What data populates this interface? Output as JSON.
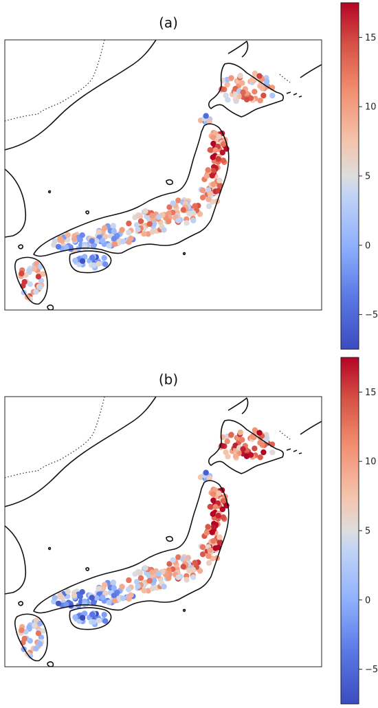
{
  "figure": {
    "panels": [
      {
        "id": "a",
        "title": "(a)"
      },
      {
        "id": "b",
        "title": "(b)"
      }
    ],
    "colorbar": {
      "colormap": "coolwarm",
      "vmin": -7.5,
      "vmax": 17.5,
      "ticks": [
        {
          "value": 15,
          "label": "15"
        },
        {
          "value": 10,
          "label": "10"
        },
        {
          "value": 5,
          "label": "5"
        },
        {
          "value": 0,
          "label": "0"
        },
        {
          "value": -5,
          "label": "−5"
        }
      ],
      "colors": {
        "low": "#3b4cc0",
        "mid": "#dddddd",
        "high": "#b40426"
      }
    },
    "region": "Japan, station map",
    "stations_described": "Colored circles at weather stations across Japan; panel (a) and (b) show different value fields"
  }
}
